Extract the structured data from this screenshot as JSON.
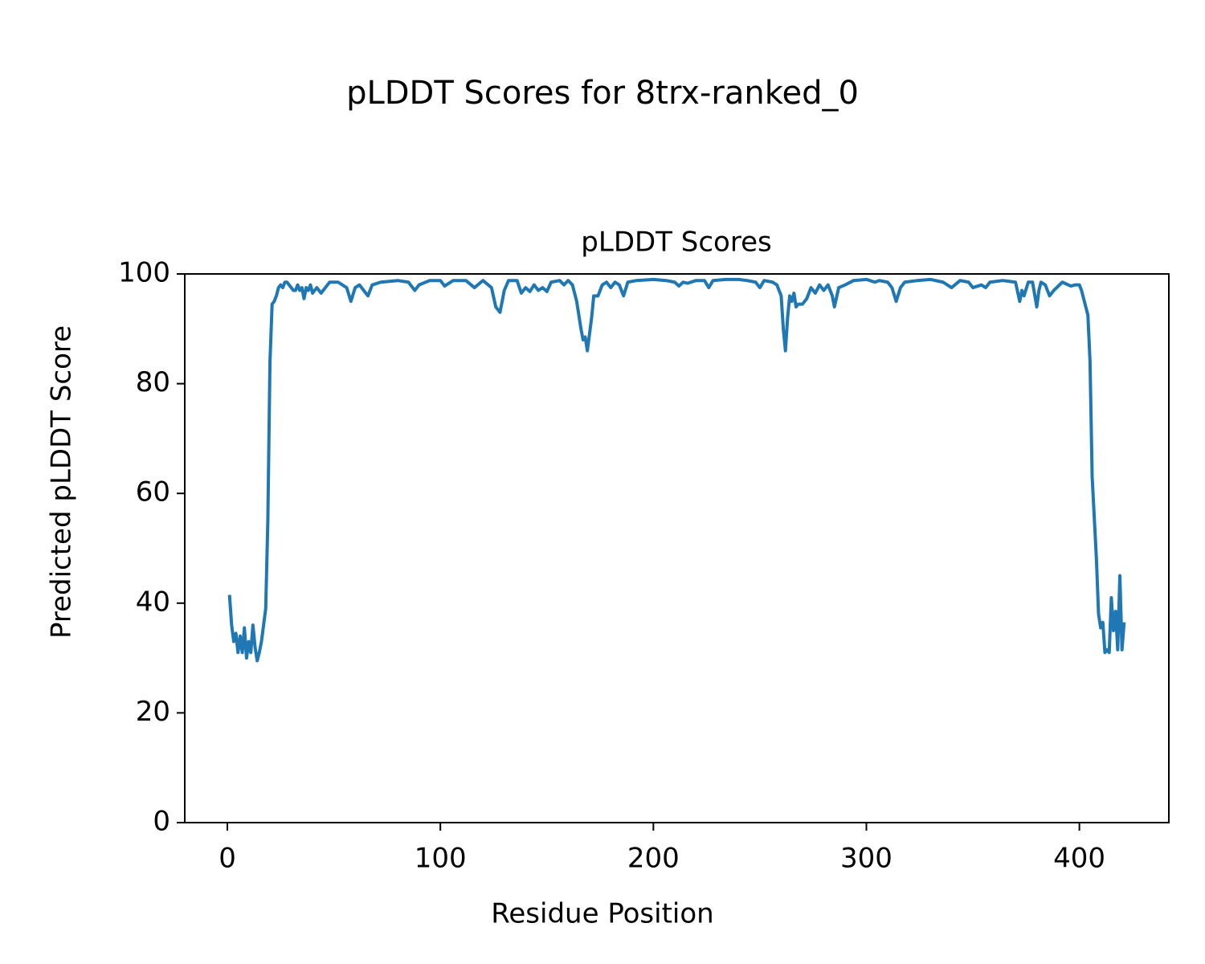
{
  "chart_data": {
    "type": "line",
    "suptitle": "pLDDT Scores for 8trx-ranked_0",
    "title": "pLDDT Scores",
    "xlabel": "Residue Position",
    "ylabel": "Predicted pLDDT Score",
    "x": [
      1,
      2,
      3,
      4,
      5,
      6,
      7,
      8,
      9,
      10,
      11,
      12,
      13,
      14,
      15,
      16,
      17,
      18,
      19,
      20,
      21,
      22,
      23,
      24,
      25,
      26,
      27,
      28,
      29,
      30,
      31,
      32,
      33,
      34,
      35,
      36,
      37,
      38,
      39,
      40,
      42,
      44,
      46,
      48,
      52,
      56,
      58,
      60,
      62,
      64,
      66,
      68,
      72,
      80,
      85,
      88,
      90,
      95,
      100,
      102,
      106,
      112,
      116,
      120,
      124,
      126,
      128,
      130,
      132,
      136,
      138,
      140,
      142,
      144,
      146,
      148,
      150,
      152,
      156,
      158,
      160,
      162,
      164,
      166,
      167,
      168,
      169,
      171,
      172,
      174,
      176,
      178,
      180,
      182,
      184,
      186,
      188,
      192,
      200,
      206,
      210,
      212,
      214,
      216,
      220,
      224,
      226,
      228,
      234,
      240,
      244,
      248,
      250,
      252,
      256,
      258,
      260,
      261,
      262,
      263,
      264,
      265,
      266,
      267,
      268,
      270,
      272,
      274,
      276,
      278,
      280,
      282,
      284,
      285,
      287,
      290,
      294,
      300,
      304,
      306,
      310,
      312,
      314,
      316,
      318,
      324,
      330,
      336,
      340,
      344,
      348,
      350,
      354,
      356,
      358,
      364,
      370,
      372,
      373,
      374,
      376,
      378,
      380,
      381,
      382,
      384,
      386,
      388,
      392,
      396,
      398,
      400,
      401,
      402,
      404,
      405,
      406,
      408,
      409,
      410,
      411,
      412,
      413,
      414,
      415,
      416,
      417,
      418,
      419,
      420,
      421
    ],
    "series": [
      {
        "name": "pLDDT",
        "color": "#1f77b4",
        "values": [
          41.5,
          36,
          33,
          34.5,
          31,
          34,
          31,
          35.5,
          30,
          33,
          31,
          36,
          32,
          29.5,
          31,
          33,
          36,
          39,
          55,
          84,
          94.5,
          95,
          96,
          97.5,
          98,
          97.5,
          98.5,
          98.5,
          98,
          97.5,
          97,
          97,
          98,
          97,
          97.5,
          95.5,
          97.5,
          97,
          98,
          96.5,
          97.5,
          96.5,
          97.5,
          98.5,
          98.5,
          97.5,
          95,
          97.5,
          98,
          97,
          96,
          98,
          98.5,
          98.8,
          98.5,
          97,
          98,
          98.8,
          98.8,
          97.8,
          98.8,
          98.8,
          97.5,
          98.8,
          97.5,
          94,
          93,
          97,
          98.8,
          98.8,
          96.5,
          97.5,
          96.8,
          98,
          97,
          97.5,
          96.8,
          98.5,
          98.8,
          98,
          98.8,
          98,
          95,
          90,
          88,
          88.5,
          86,
          92,
          96,
          96,
          98,
          98.5,
          97.5,
          98.5,
          98,
          96,
          98.5,
          98.8,
          99,
          98.8,
          98.5,
          97.8,
          98.5,
          98.3,
          98.8,
          98.8,
          97.5,
          98.8,
          99,
          99,
          98.8,
          98.5,
          97.5,
          98.8,
          98.5,
          98,
          96,
          90,
          86,
          92,
          96,
          95,
          96.5,
          94,
          94.5,
          94.5,
          95.5,
          97.5,
          96.5,
          98,
          97,
          98,
          96,
          94,
          97.5,
          98,
          98.8,
          99,
          98.5,
          98.8,
          98.5,
          97.5,
          95,
          97.5,
          98.5,
          98.8,
          99,
          98.5,
          97.5,
          98.8,
          98.5,
          97.5,
          98,
          97.5,
          98.5,
          98.8,
          98.5,
          95,
          97,
          96,
          98.5,
          98.5,
          94,
          97,
          98.5,
          98,
          96,
          97,
          98.5,
          97.8,
          98,
          98,
          97,
          95.5,
          92.5,
          84,
          63,
          48,
          38,
          35.5,
          36.5,
          31,
          31.5,
          31,
          41,
          35,
          38.5,
          31.5,
          45,
          31.5,
          36.5
        ]
      }
    ],
    "xlim": [
      -20,
      442
    ],
    "ylim": [
      0,
      100
    ],
    "xticks": [
      0,
      100,
      200,
      300,
      400
    ],
    "yticks": [
      0,
      20,
      40,
      60,
      80,
      100
    ],
    "grid": false
  }
}
